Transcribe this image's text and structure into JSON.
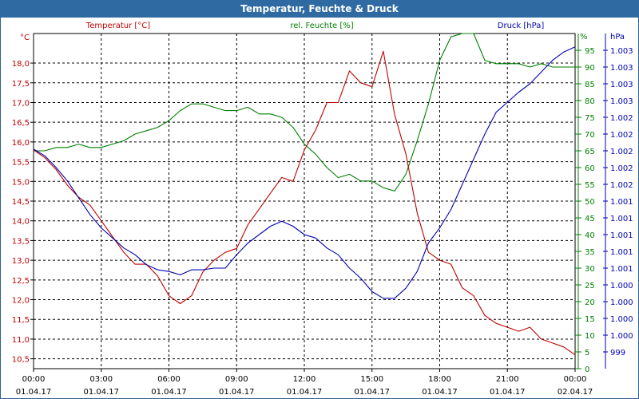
{
  "window": {
    "title": "Temperatur, Feuchte & Druck"
  },
  "chart_data": {
    "type": "line",
    "title": "Temperatur, Feuchte & Druck",
    "colors": {
      "temperature": "#c00000",
      "humidity": "#008000",
      "pressure": "#0000b0",
      "grid": "#000000"
    },
    "x_ticks": [
      {
        "time": "00:00",
        "date": "01.04.17"
      },
      {
        "time": "03:00",
        "date": "01.04.17"
      },
      {
        "time": "06:00",
        "date": "01.04.17"
      },
      {
        "time": "09:00",
        "date": "01.04.17"
      },
      {
        "time": "12:00",
        "date": "01.04.17"
      },
      {
        "time": "15:00",
        "date": "01.04.17"
      },
      {
        "time": "18:00",
        "date": "01.04.17"
      },
      {
        "time": "21:00",
        "date": "01.04.17"
      },
      {
        "time": "00:00",
        "date": "02.04.17"
      }
    ],
    "x_range_hours": [
      0,
      24
    ],
    "temperature": {
      "legend": "Temperatur [°C]",
      "unit_label": "°C",
      "ylim": [
        10.25,
        18.75
      ],
      "ticks": [
        "10,5",
        "11,0",
        "11,5",
        "12,0",
        "12,5",
        "13,0",
        "13,5",
        "14,0",
        "14,5",
        "15,0",
        "15,5",
        "16,0",
        "16,5",
        "17,0",
        "17,5",
        "18,0"
      ],
      "tick_values": [
        10.5,
        11.0,
        11.5,
        12.0,
        12.5,
        13.0,
        13.5,
        14.0,
        14.5,
        15.0,
        15.5,
        16.0,
        16.5,
        17.0,
        17.5,
        18.0
      ],
      "x": [
        0,
        0.5,
        1,
        1.5,
        2,
        2.5,
        3,
        3.5,
        4,
        4.5,
        5,
        5.5,
        6,
        6.5,
        7,
        7.5,
        8,
        8.5,
        9,
        9.5,
        10,
        10.5,
        11,
        11.5,
        12,
        12.5,
        13,
        13.5,
        14,
        14.5,
        15,
        15.5,
        16,
        16.5,
        17,
        17.5,
        18,
        18.5,
        19,
        19.5,
        20,
        20.5,
        21,
        21.5,
        22,
        22.5,
        23,
        23.5,
        24
      ],
      "values": [
        15.8,
        15.6,
        15.3,
        14.9,
        14.6,
        14.4,
        14.0,
        13.6,
        13.2,
        12.9,
        12.9,
        12.6,
        12.1,
        11.9,
        12.1,
        12.7,
        13.0,
        13.2,
        13.3,
        13.9,
        14.3,
        14.7,
        15.1,
        15.0,
        15.8,
        16.3,
        17.0,
        17.0,
        17.8,
        17.5,
        17.4,
        18.3,
        16.7,
        15.7,
        14.2,
        13.2,
        13.0,
        12.9,
        12.3,
        12.1,
        11.6,
        11.4,
        11.3,
        11.2,
        11.3,
        11.0,
        10.9,
        10.8,
        10.6
      ]
    },
    "humidity": {
      "legend": "rel. Feuchte [%]",
      "unit_label": "%",
      "ylim": [
        0,
        100
      ],
      "ticks": [
        "0",
        "5",
        "10",
        "15",
        "20",
        "25",
        "30",
        "35",
        "40",
        "45",
        "50",
        "55",
        "60",
        "65",
        "70",
        "75",
        "80",
        "85",
        "90",
        "95"
      ],
      "tick_values": [
        0,
        5,
        10,
        15,
        20,
        25,
        30,
        35,
        40,
        45,
        50,
        55,
        60,
        65,
        70,
        75,
        80,
        85,
        90,
        95
      ],
      "x": [
        0,
        0.5,
        1,
        1.5,
        2,
        2.5,
        3,
        3.5,
        4,
        4.5,
        5,
        5.5,
        6,
        6.5,
        7,
        7.5,
        8,
        8.5,
        9,
        9.5,
        10,
        10.5,
        11,
        11.5,
        12,
        12.5,
        13,
        13.5,
        14,
        14.5,
        15,
        15.5,
        16,
        16.5,
        17,
        17.5,
        18,
        18.5,
        19,
        19.5,
        20,
        20.5,
        21,
        21.5,
        22,
        22.5,
        23,
        23.5,
        24
      ],
      "values": [
        65,
        65,
        66,
        66,
        67,
        66,
        66,
        67,
        68,
        70,
        71,
        72,
        74,
        77,
        79,
        79,
        78,
        77,
        77,
        78,
        76,
        76,
        75,
        72,
        67,
        64,
        60,
        57,
        58,
        56,
        56,
        54,
        53,
        58,
        68,
        79,
        92,
        99,
        100,
        100,
        92,
        91,
        91,
        91,
        90,
        91,
        90,
        90,
        90
      ]
    },
    "pressure": {
      "legend": "Druck [hPa]",
      "unit_label": "hPa",
      "ylim": [
        0,
        20
      ],
      "ticks": [
        "999",
        "1.000",
        "1.000",
        "1.000",
        "1.000",
        "1.001",
        "1.001",
        "1.001",
        "1.001",
        "1.001",
        "1.002",
        "1.002",
        "1.002",
        "1.002",
        "1.002",
        "1.003",
        "1.003",
        "1.003",
        "1.003"
      ],
      "tick_values": [
        1,
        2,
        3,
        4,
        5,
        6,
        7,
        8,
        9,
        10,
        11,
        12,
        13,
        14,
        15,
        16,
        17,
        18,
        19
      ],
      "x": [
        0,
        0.5,
        1,
        1.5,
        2,
        2.5,
        3,
        3.5,
        4,
        4.5,
        5,
        5.5,
        6,
        6.5,
        7,
        7.5,
        8,
        8.5,
        9,
        9.5,
        10,
        10.5,
        11,
        11.5,
        12,
        12.5,
        13,
        13.5,
        14,
        14.5,
        15,
        15.5,
        16,
        16.5,
        17,
        17.5,
        18,
        18.5,
        19,
        19.5,
        20,
        20.5,
        21,
        21.5,
        22,
        22.5,
        23,
        23.5,
        24
      ],
      "values": [
        13.1,
        12.7,
        12.0,
        11.2,
        10.2,
        9.2,
        8.4,
        7.8,
        7.2,
        6.8,
        6.2,
        5.9,
        5.8,
        5.6,
        5.9,
        5.9,
        6.0,
        6.0,
        6.8,
        7.5,
        8.0,
        8.5,
        8.8,
        8.5,
        8.0,
        7.8,
        7.2,
        6.8,
        6.0,
        5.4,
        4.6,
        4.2,
        4.2,
        4.8,
        5.8,
        7.5,
        8.4,
        9.5,
        11.0,
        12.5,
        14.0,
        15.3,
        15.9,
        16.5,
        17.0,
        17.7,
        18.4,
        18.9,
        19.2
      ]
    }
  }
}
